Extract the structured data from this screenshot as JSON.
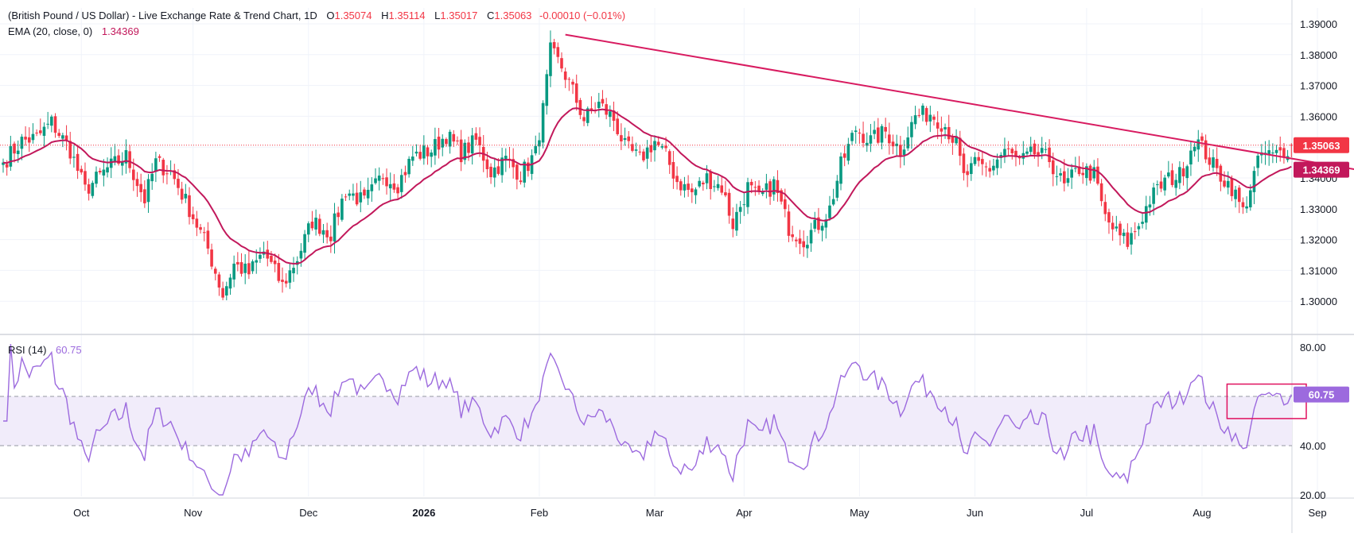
{
  "header": {
    "symbol_title": "(British Pound / US Dollar) - Live Exchange Rate & Trend Chart, 1D",
    "o_label": "O",
    "o_value": "1.35074",
    "h_label": "H",
    "h_value": "1.35114",
    "l_label": "L",
    "l_value": "1.35017",
    "c_label": "C",
    "c_value": "1.35063",
    "change": "-0.00010 (−0.01%)",
    "ema_label": "EMA (20, close, 0)",
    "ema_value": "1.34369",
    "rsi_label": "RSI (14)",
    "rsi_value": "60.75"
  },
  "colors": {
    "up": "#089981",
    "down": "#f23645",
    "ema": "#c2185b",
    "trendline": "#d81b60",
    "rsi": "#9c6ade",
    "rsi_band": "#f1ecfa",
    "highlight_box": "#e0115f",
    "price_badge": "#f23645",
    "ema_badge": "#c2185b",
    "rsi_badge": "#9c6ade"
  },
  "chart_data": [
    {
      "type": "candlestick",
      "title": "(British Pound / US Dollar) - Live Exchange Rate & Trend Chart, 1D",
      "ylim": [
        1.295,
        1.392
      ],
      "y_ticks": [
        "1.39000",
        "1.38000",
        "1.37000",
        "1.36000",
        "1.35000",
        "1.34000",
        "1.33000",
        "1.32000",
        "1.31000",
        "1.30000"
      ],
      "x_ticks": [
        {
          "label": "Oct",
          "bold": false
        },
        {
          "label": "Nov",
          "bold": false
        },
        {
          "label": "Dec",
          "bold": false
        },
        {
          "label": "2026",
          "bold": true
        },
        {
          "label": "Feb",
          "bold": false
        },
        {
          "label": "Mar",
          "bold": false
        },
        {
          "label": "Apr",
          "bold": false
        },
        {
          "label": "May",
          "bold": false
        },
        {
          "label": "Jun",
          "bold": false
        },
        {
          "label": "Jul",
          "bold": false
        },
        {
          "label": "Aug",
          "bold": false
        },
        {
          "label": "Sep",
          "bold": false
        }
      ],
      "close_anchors": [
        [
          0,
          1.345
        ],
        [
          5,
          1.352
        ],
        [
          9,
          1.353
        ],
        [
          13,
          1.358
        ],
        [
          18,
          1.349
        ],
        [
          22,
          1.336
        ],
        [
          28,
          1.343
        ],
        [
          33,
          1.347
        ],
        [
          38,
          1.333
        ],
        [
          41,
          1.345
        ],
        [
          45,
          1.342
        ],
        [
          50,
          1.33
        ],
        [
          55,
          1.317
        ],
        [
          59,
          1.302
        ],
        [
          62,
          1.312
        ],
        [
          66,
          1.309
        ],
        [
          70,
          1.316
        ],
        [
          75,
          1.305
        ],
        [
          79,
          1.314
        ],
        [
          83,
          1.326
        ],
        [
          88,
          1.322
        ],
        [
          92,
          1.336
        ],
        [
          97,
          1.332
        ],
        [
          102,
          1.341
        ],
        [
          106,
          1.338
        ],
        [
          110,
          1.347
        ],
        [
          115,
          1.349
        ],
        [
          119,
          1.354
        ],
        [
          123,
          1.348
        ],
        [
          127,
          1.352
        ],
        [
          131,
          1.342
        ],
        [
          135,
          1.346
        ],
        [
          139,
          1.341
        ],
        [
          143,
          1.348
        ],
        [
          145,
          1.362
        ],
        [
          147,
          1.381
        ],
        [
          150,
          1.376
        ],
        [
          153,
          1.368
        ],
        [
          156,
          1.359
        ],
        [
          160,
          1.364
        ],
        [
          164,
          1.359
        ],
        [
          167,
          1.35
        ],
        [
          171,
          1.346
        ],
        [
          175,
          1.352
        ],
        [
          178,
          1.347
        ],
        [
          181,
          1.339
        ],
        [
          185,
          1.335
        ],
        [
          189,
          1.34
        ],
        [
          193,
          1.337
        ],
        [
          196,
          1.325
        ],
        [
          200,
          1.337
        ],
        [
          203,
          1.333
        ],
        [
          207,
          1.338
        ],
        [
          211,
          1.324
        ],
        [
          215,
          1.32
        ],
        [
          219,
          1.325
        ],
        [
          222,
          1.33
        ],
        [
          225,
          1.344
        ],
        [
          229,
          1.356
        ],
        [
          233,
          1.352
        ],
        [
          237,
          1.355
        ],
        [
          241,
          1.349
        ],
        [
          245,
          1.36
        ],
        [
          249,
          1.361
        ],
        [
          253,
          1.357
        ],
        [
          256,
          1.351
        ],
        [
          258,
          1.34
        ],
        [
          261,
          1.344
        ],
        [
          265,
          1.343
        ],
        [
          269,
          1.349
        ],
        [
          273,
          1.345
        ],
        [
          277,
          1.348
        ],
        [
          281,
          1.346
        ],
        [
          285,
          1.337
        ],
        [
          289,
          1.343
        ],
        [
          293,
          1.341
        ],
        [
          296,
          1.327
        ],
        [
          299,
          1.322
        ],
        [
          302,
          1.319
        ],
        [
          305,
          1.325
        ],
        [
          308,
          1.333
        ],
        [
          312,
          1.339
        ],
        [
          316,
          1.341
        ],
        [
          318,
          1.346
        ],
        [
          320,
          1.353
        ],
        [
          323,
          1.348
        ],
        [
          326,
          1.342
        ],
        [
          330,
          1.337
        ],
        [
          333,
          1.329
        ],
        [
          336,
          1.341
        ],
        [
          338,
          1.348
        ],
        [
          341,
          1.347
        ],
        [
          344,
          1.349
        ],
        [
          346,
          1.3506
        ]
      ],
      "ema_last": 1.34369,
      "last_close": 1.35063,
      "trendline": [
        [
          151,
          1.3865
        ],
        [
          380,
          1.3393
        ]
      ]
    },
    {
      "type": "line",
      "title": "RSI (14)",
      "ylim": [
        18,
        84
      ],
      "y_ticks": [
        "80.00",
        "40.00",
        "20.00"
      ],
      "band": [
        40,
        60
      ],
      "last_value": 60.75,
      "highlight_range": [
        330,
        350,
        51,
        65
      ]
    }
  ]
}
